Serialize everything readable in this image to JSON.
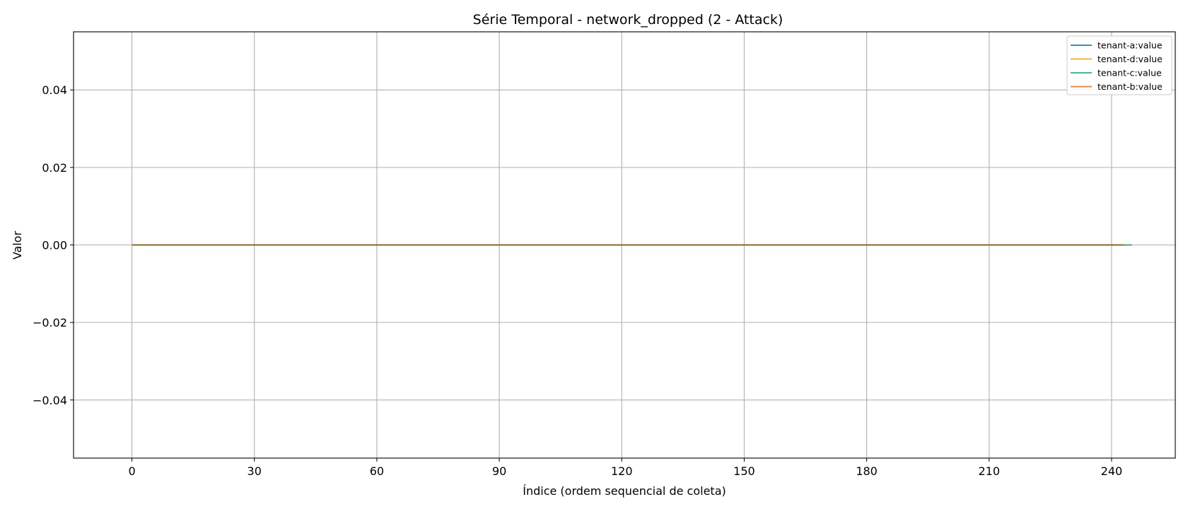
{
  "chart_data": {
    "type": "line",
    "title": "Série Temporal - network_dropped (2 - Attack)",
    "xlabel": "Índice (ordem sequencial de coleta)",
    "ylabel": "Valor",
    "xlim": [
      -14.3,
      255.6
    ],
    "ylim": [
      -0.055,
      0.055
    ],
    "xticks": [
      0,
      30,
      60,
      90,
      120,
      150,
      180,
      210,
      240
    ],
    "xtick_labels": [
      "0",
      "30",
      "60",
      "90",
      "120",
      "150",
      "180",
      "210",
      "240"
    ],
    "yticks": [
      -0.04,
      -0.02,
      0.0,
      0.02,
      0.04
    ],
    "ytick_labels": [
      "−0.04",
      "−0.02",
      "0.00",
      "0.02",
      "0.04"
    ],
    "grid": true,
    "legend_position": "top-right",
    "series": [
      {
        "name": "tenant-a:value",
        "color": "#1f77b4",
        "x": [
          0,
          245
        ],
        "y": [
          0,
          0
        ]
      },
      {
        "name": "tenant-d:value",
        "color": "#f5a623",
        "x": [
          0,
          245
        ],
        "y": [
          0,
          0
        ]
      },
      {
        "name": "tenant-c:value",
        "color": "#2ca87f",
        "x": [
          0,
          245
        ],
        "y": [
          0,
          0
        ]
      },
      {
        "name": "tenant-b:value",
        "color": "#e8762d",
        "x": [
          0,
          243
        ],
        "y": [
          0,
          0
        ]
      }
    ],
    "overlap_color": "#8a6a1f"
  }
}
